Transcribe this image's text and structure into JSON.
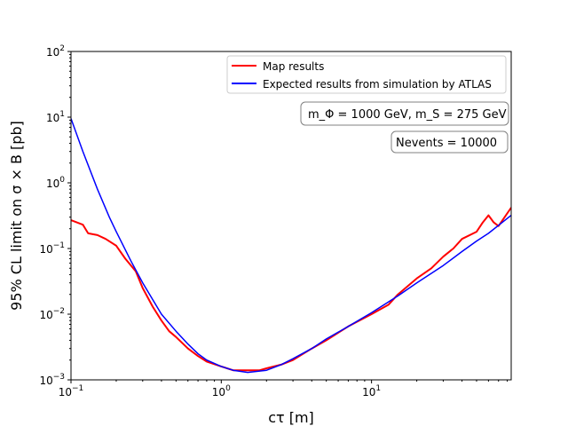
{
  "chart_data": {
    "type": "line",
    "xlabel": "cτ [m]",
    "ylabel": "95% CL limit on σ × B [pb]",
    "xscale": "log",
    "yscale": "log",
    "xlim": [
      0.1,
      85
    ],
    "ylim": [
      0.001,
      100
    ],
    "xticks": [
      {
        "value": 0.1,
        "base": "10",
        "exp": "−1"
      },
      {
        "value": 1,
        "base": "10",
        "exp": "0"
      },
      {
        "value": 10,
        "base": "10",
        "exp": "1"
      }
    ],
    "yticks": [
      {
        "value": 0.001,
        "base": "10",
        "exp": "−3"
      },
      {
        "value": 0.01,
        "base": "10",
        "exp": "−2"
      },
      {
        "value": 0.1,
        "base": "10",
        "exp": "−1"
      },
      {
        "value": 1,
        "base": "10",
        "exp": "0"
      },
      {
        "value": 10,
        "base": "10",
        "exp": "1"
      },
      {
        "value": 100,
        "base": "10",
        "exp": "2"
      }
    ],
    "grid": false,
    "legend_position": "top-right",
    "annotations": {
      "masses": "m_Φ = 1000 GeV, m_S = 275 GeV",
      "events": "Nevents = 10000"
    },
    "series": [
      {
        "name": "Map results",
        "color": "#ff0000",
        "x": [
          0.1,
          0.12,
          0.13,
          0.15,
          0.17,
          0.2,
          0.23,
          0.27,
          0.3,
          0.35,
          0.4,
          0.45,
          0.5,
          0.6,
          0.7,
          0.8,
          1.0,
          1.2,
          1.5,
          1.8,
          2.0,
          2.5,
          3.0,
          4.0,
          5.0,
          7.0,
          10,
          13,
          15,
          20,
          25,
          30,
          35,
          40,
          50,
          55,
          60,
          65,
          70,
          85
        ],
        "y": [
          0.27,
          0.23,
          0.17,
          0.16,
          0.14,
          0.11,
          0.07,
          0.045,
          0.025,
          0.013,
          0.008,
          0.0055,
          0.0045,
          0.003,
          0.0023,
          0.0019,
          0.0016,
          0.0014,
          0.0014,
          0.0014,
          0.0015,
          0.0017,
          0.002,
          0.003,
          0.004,
          0.0065,
          0.01,
          0.014,
          0.02,
          0.035,
          0.05,
          0.075,
          0.1,
          0.14,
          0.18,
          0.25,
          0.32,
          0.25,
          0.22,
          0.42
        ]
      },
      {
        "name": "Expected results from simulation by ATLAS",
        "color": "#0000ff",
        "x": [
          0.1,
          0.12,
          0.15,
          0.18,
          0.2,
          0.25,
          0.3,
          0.4,
          0.5,
          0.6,
          0.7,
          0.8,
          1.0,
          1.2,
          1.5,
          2.0,
          2.5,
          3.0,
          4.0,
          5.0,
          7.0,
          10,
          15,
          20,
          30,
          40,
          50,
          60,
          85
        ],
        "y": [
          9.5,
          3.0,
          0.8,
          0.3,
          0.18,
          0.065,
          0.03,
          0.01,
          0.0055,
          0.0035,
          0.0025,
          0.002,
          0.0016,
          0.0014,
          0.0013,
          0.0014,
          0.0017,
          0.0021,
          0.003,
          0.0042,
          0.0065,
          0.0105,
          0.019,
          0.03,
          0.055,
          0.09,
          0.13,
          0.17,
          0.32
        ]
      }
    ]
  }
}
